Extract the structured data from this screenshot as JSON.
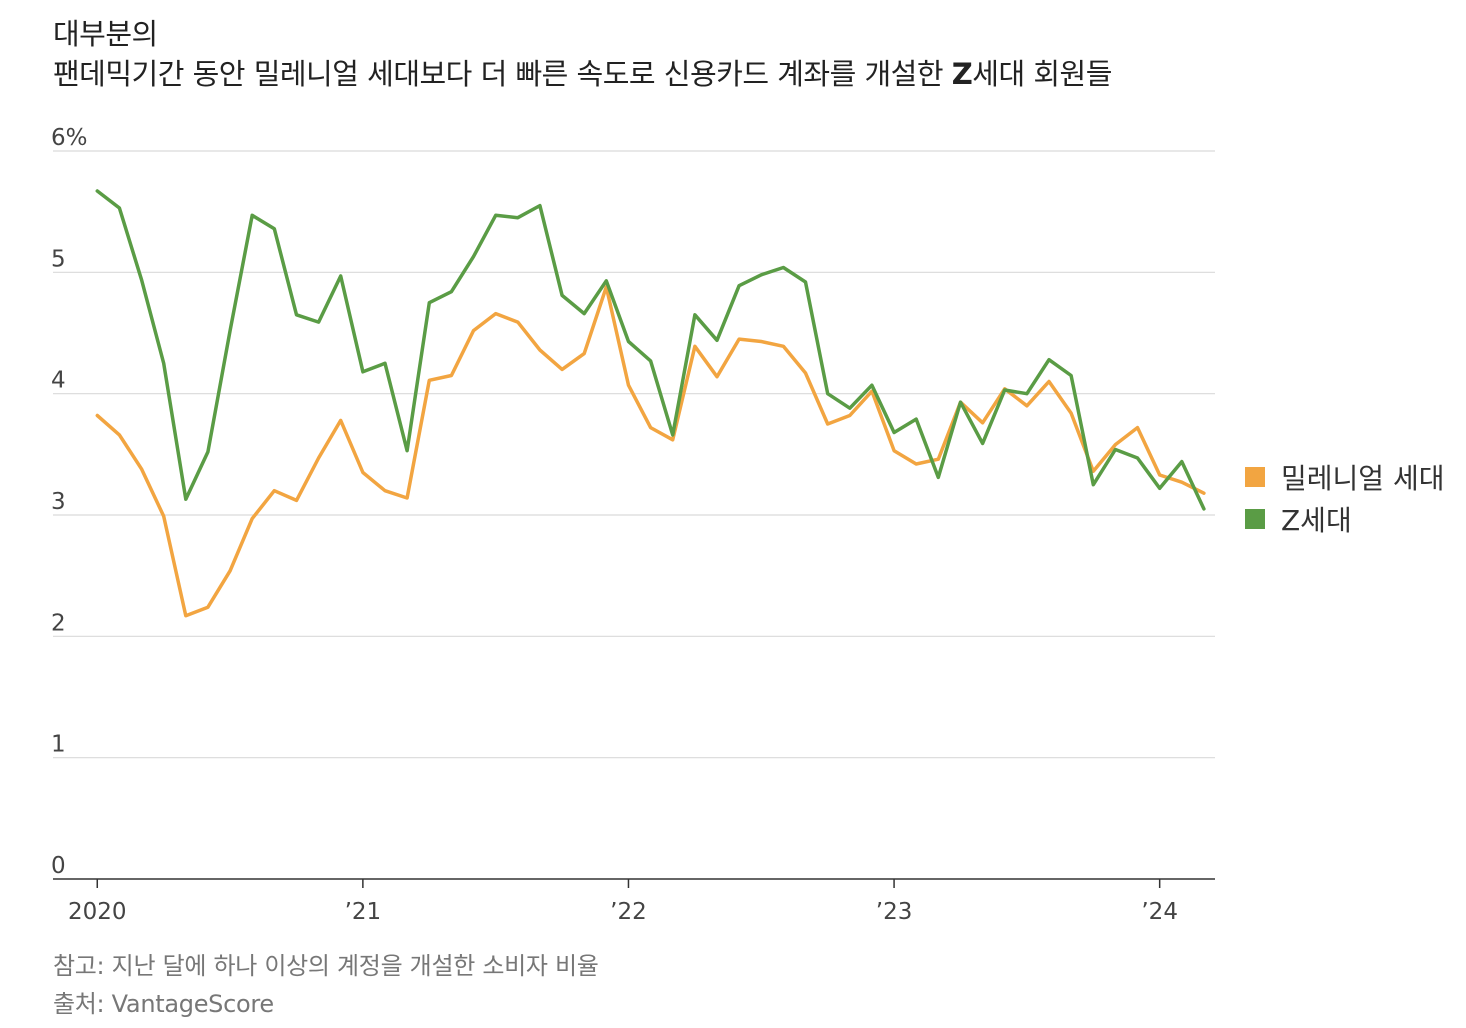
{
  "title": {
    "line1": "대부분의",
    "line2_prefix": "팬데믹기간 동안 밀레니얼 세대보다 더 빠른 속도로 신용카드 계좌를 개설한 ",
    "line2_bold": "Z",
    "line2_suffix": "세대 회원들"
  },
  "notes": {
    "note": "참고: 지난 달에 하나 이상의 계정을 개설한 소비자 비율",
    "source": "출처: VantageScore"
  },
  "legend": {
    "millennial": "밀레니얼 세대",
    "genz": "Z세대"
  },
  "colors": {
    "millennial": "#f2a541",
    "genz": "#5a9c45",
    "grid": "#d9d9d9",
    "axis": "#333333"
  },
  "chart_data": {
    "type": "line",
    "title": "대부분의 팬데믹기간 동안 밀레니얼 세대보다 더 빠른 속도로 신용카드 계좌를 개설한 Z세대 회원들",
    "xlabel": "",
    "ylabel": "",
    "ylim": [
      0,
      6
    ],
    "yticks": [
      {
        "value": 0,
        "label": "0"
      },
      {
        "value": 1,
        "label": "1"
      },
      {
        "value": 2,
        "label": "2"
      },
      {
        "value": 3,
        "label": "3"
      },
      {
        "value": 4,
        "label": "4"
      },
      {
        "value": 5,
        "label": "5"
      },
      {
        "value": 6,
        "label": "6%"
      }
    ],
    "xticks": [
      {
        "index": 0,
        "label": "2020"
      },
      {
        "index": 12,
        "label": "’21"
      },
      {
        "index": 24,
        "label": "’22"
      },
      {
        "index": 36,
        "label": "’23"
      },
      {
        "index": 48,
        "label": "’24"
      }
    ],
    "x_range": [
      -2,
      50.5
    ],
    "series": [
      {
        "name": "밀레니얼 세대",
        "key": "millennial",
        "values": [
          3.82,
          3.66,
          3.38,
          2.99,
          2.17,
          2.24,
          2.54,
          2.97,
          3.2,
          3.12,
          3.47,
          3.78,
          3.35,
          3.2,
          3.14,
          4.11,
          4.15,
          4.52,
          4.66,
          4.59,
          4.36,
          4.2,
          4.33,
          4.88,
          4.07,
          3.72,
          3.62,
          4.39,
          4.14,
          4.45,
          4.43,
          4.39,
          4.17,
          3.75,
          3.82,
          4.02,
          3.53,
          3.42,
          3.46,
          3.93,
          3.76,
          4.04,
          3.9,
          4.1,
          3.84,
          3.36,
          3.58,
          3.72,
          3.33,
          3.27,
          3.18
        ]
      },
      {
        "name": "Z세대",
        "key": "genz",
        "values": [
          5.67,
          5.53,
          4.94,
          4.25,
          3.13,
          3.52,
          4.52,
          5.47,
          5.36,
          4.65,
          4.59,
          4.97,
          4.18,
          4.25,
          3.53,
          4.75,
          4.84,
          5.13,
          5.47,
          5.45,
          5.55,
          4.81,
          4.66,
          4.93,
          4.43,
          4.27,
          3.66,
          4.65,
          4.44,
          4.89,
          4.98,
          5.04,
          4.92,
          4.0,
          3.88,
          4.07,
          3.68,
          3.79,
          3.31,
          3.93,
          3.59,
          4.03,
          4.0,
          4.28,
          4.15,
          3.25,
          3.54,
          3.47,
          3.22,
          3.44,
          3.05
        ]
      }
    ]
  }
}
